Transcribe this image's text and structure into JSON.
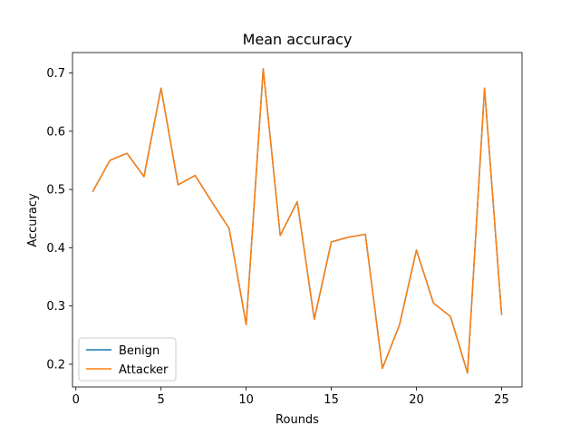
{
  "chart_data": {
    "type": "line",
    "title": "Mean accuracy",
    "xlabel": "Rounds",
    "ylabel": "Accuracy",
    "xlim": [
      -0.2,
      26.2
    ],
    "ylim": [
      0.161,
      0.735
    ],
    "xticks": [
      0,
      5,
      10,
      15,
      20,
      25
    ],
    "yticks": [
      0.2,
      0.3,
      0.4,
      0.5,
      0.6,
      0.7
    ],
    "grid": false,
    "legend_position": "lower-left",
    "x": [
      1,
      2,
      3,
      4,
      5,
      6,
      7,
      8,
      9,
      10,
      11,
      12,
      13,
      14,
      15,
      16,
      17,
      18,
      19,
      20,
      21,
      22,
      23,
      24,
      25
    ],
    "series": [
      {
        "name": "Benign",
        "color": "#1f77b4",
        "values": [
          0.497,
          0.55,
          0.562,
          0.522,
          0.674,
          0.508,
          0.524,
          0.478,
          0.433,
          0.268,
          0.707,
          0.421,
          0.479,
          0.277,
          0.41,
          0.418,
          0.423,
          0.193,
          0.267,
          0.396,
          0.305,
          0.282,
          0.185,
          0.674,
          0.286
        ]
      },
      {
        "name": "Attacker",
        "color": "#ff7f0e",
        "values": [
          0.497,
          0.55,
          0.562,
          0.522,
          0.674,
          0.508,
          0.524,
          0.478,
          0.433,
          0.268,
          0.707,
          0.421,
          0.479,
          0.277,
          0.41,
          0.418,
          0.423,
          0.193,
          0.267,
          0.396,
          0.305,
          0.282,
          0.185,
          0.674,
          0.286
        ]
      }
    ]
  }
}
